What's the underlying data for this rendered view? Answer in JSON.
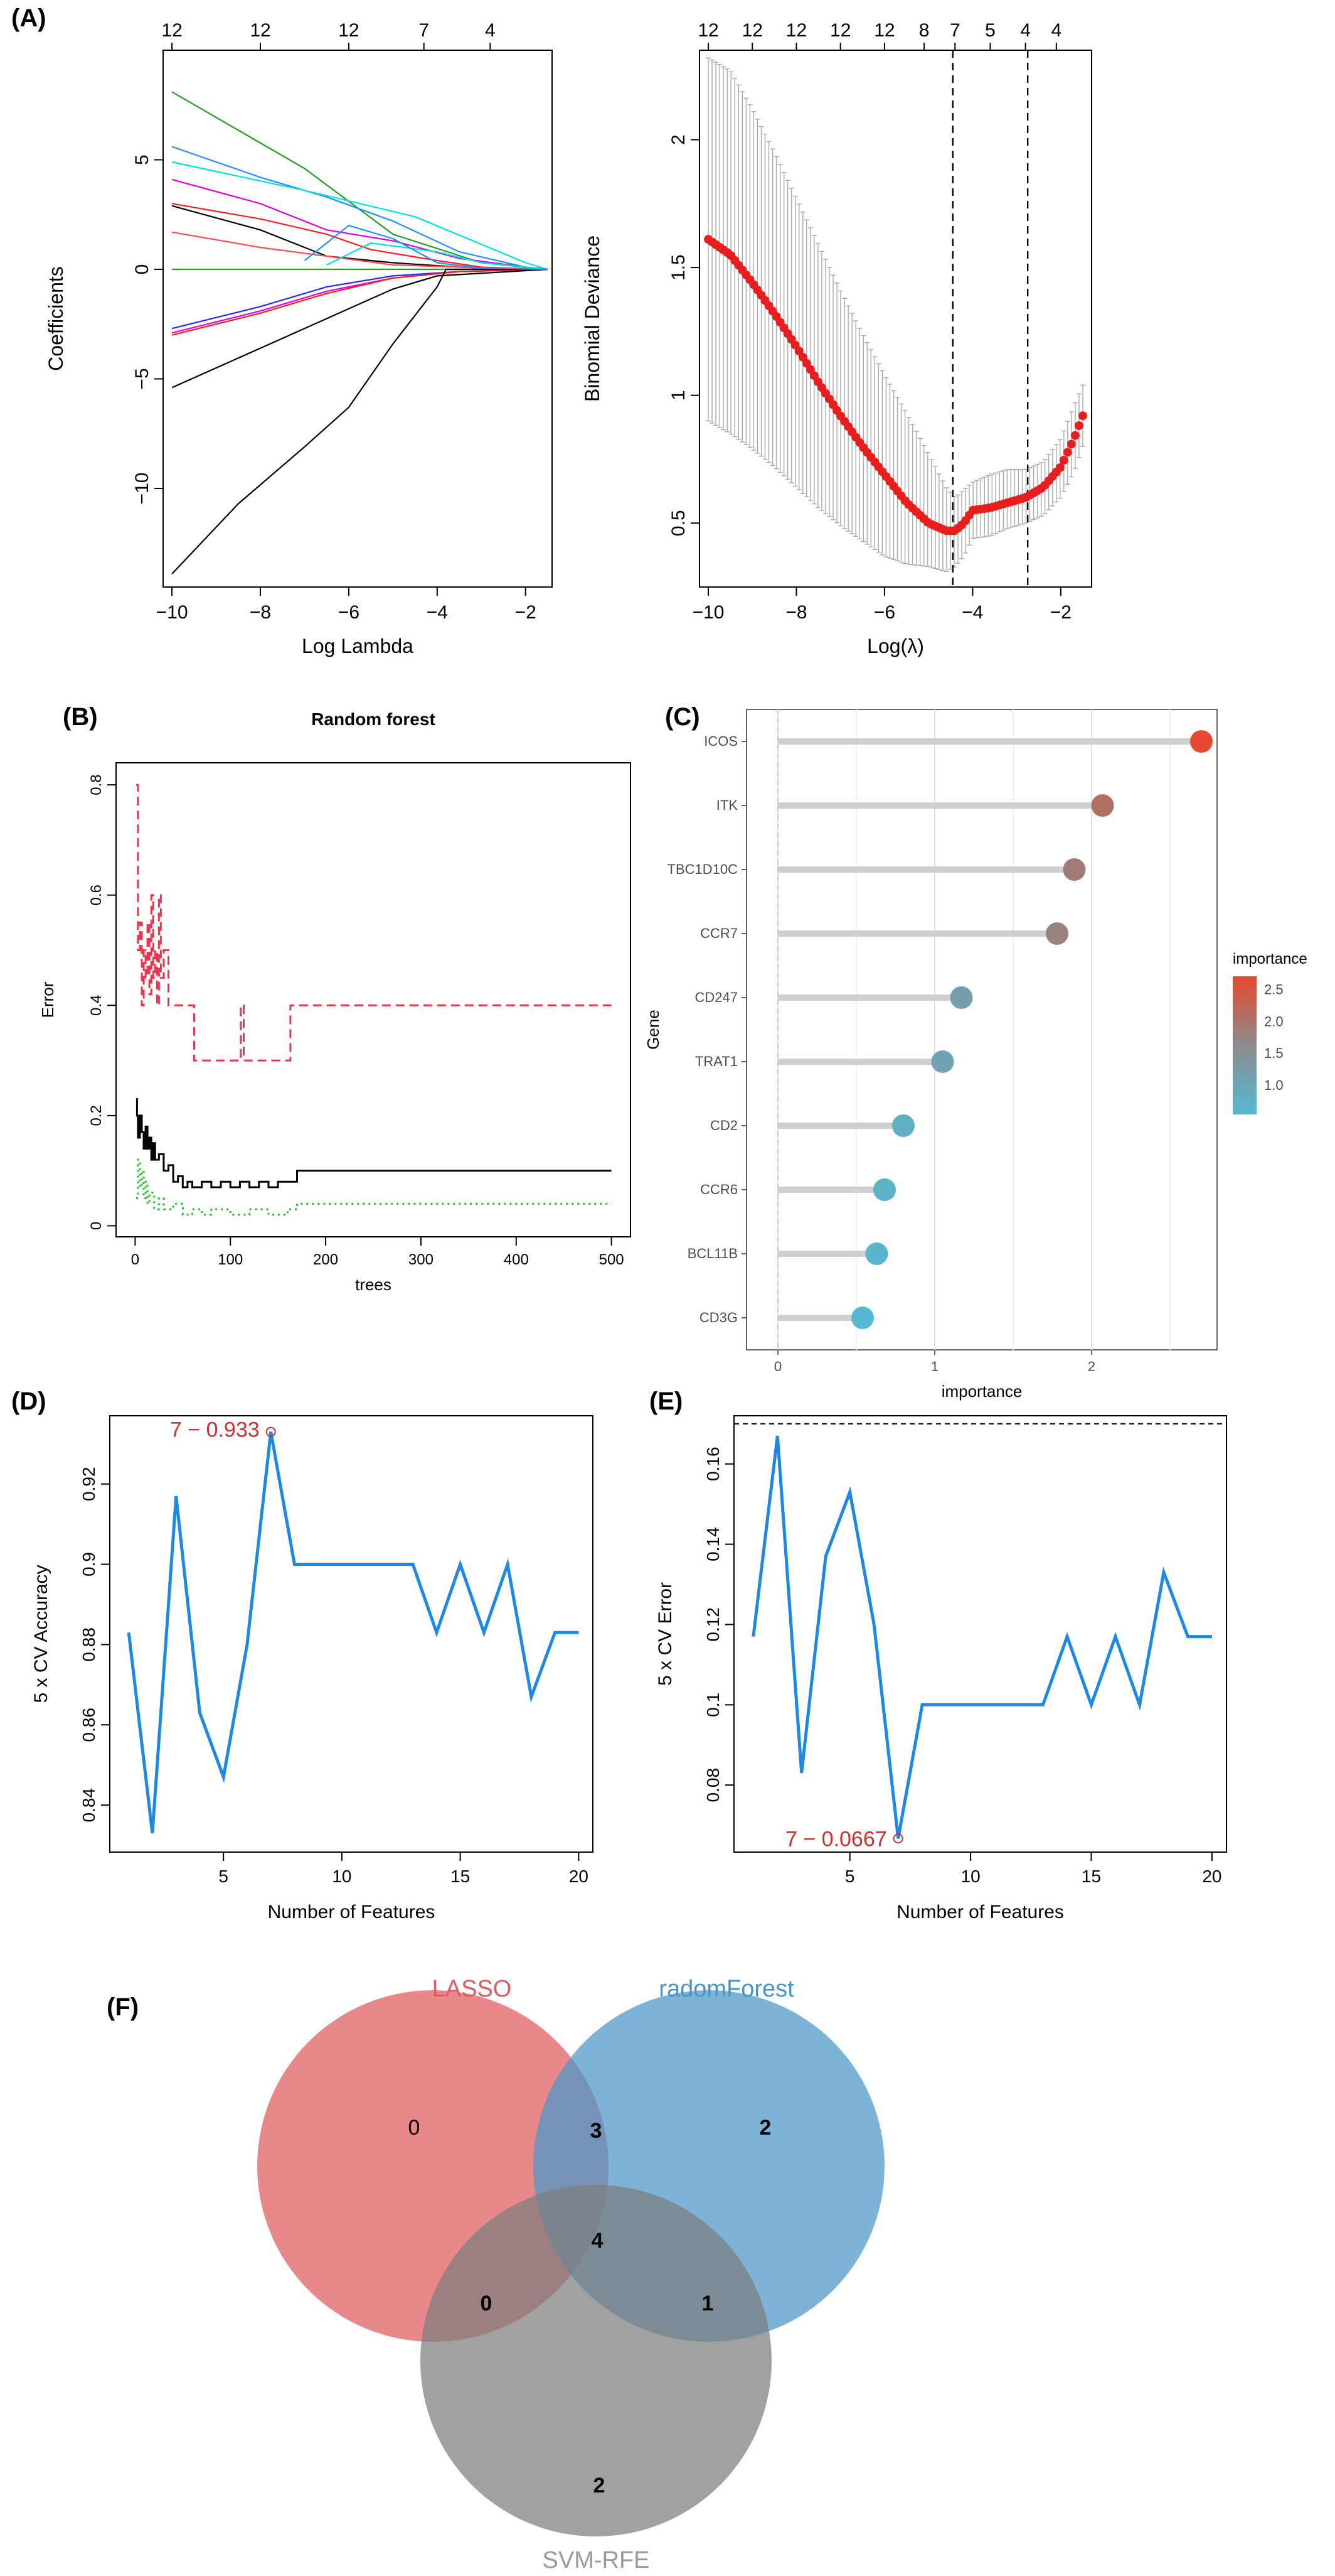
{
  "panels": {
    "A": "(A)",
    "B": "(B)",
    "C": "(C)",
    "D": "(D)",
    "E": "(E)",
    "F": "(F)"
  },
  "chart_data": [
    {
      "id": "A1",
      "type": "line",
      "xlabel": "Log Lambda",
      "ylabel": "Coefficients",
      "xlim": [
        -10.2,
        -1.4
      ],
      "ylim": [
        -14.5,
        10.0
      ],
      "xticks": [
        -10,
        -8,
        -6,
        -4,
        -2
      ],
      "yticks": [
        -10,
        -5,
        0,
        5
      ],
      "top_axis_ticks": [
        -10,
        -8,
        -6,
        -4.3,
        -2.8
      ],
      "top_axis_labels": [
        "12",
        "12",
        "12",
        "7",
        "4"
      ],
      "series": [
        {
          "color": "#1ea01e",
          "x": [
            -10,
            -7,
            -5,
            -3,
            -1.5
          ],
          "y": [
            8.1,
            4.6,
            1.6,
            0.3,
            0
          ]
        },
        {
          "color": "#1e90ff",
          "x": [
            -10,
            -8,
            -6.5,
            -5,
            -3.5,
            -2,
            -1.5
          ],
          "y": [
            5.6,
            4.2,
            3.3,
            2.2,
            0.8,
            0.1,
            0
          ]
        },
        {
          "color": "#00e0e0",
          "x": [
            -10,
            -7,
            -4.5,
            -2,
            -1.5
          ],
          "y": [
            4.9,
            3.6,
            2.4,
            0.3,
            0
          ]
        },
        {
          "color": "#e000e0",
          "x": [
            -10,
            -8,
            -6.5,
            -5,
            -3.5,
            -2,
            -1.5
          ],
          "y": [
            4.1,
            3.0,
            1.8,
            1.3,
            0.5,
            0.1,
            0
          ]
        },
        {
          "color": "#000000",
          "x": [
            -10,
            -8,
            -6.5,
            -5,
            -3.5,
            -2,
            -1.5
          ],
          "y": [
            2.9,
            1.8,
            0.6,
            0.3,
            0.1,
            0,
            0
          ]
        },
        {
          "color": "#ff1e1e",
          "x": [
            -10,
            -8,
            -6.5,
            -5.5,
            -4,
            -3,
            -1.5
          ],
          "y": [
            3.0,
            2.3,
            1.6,
            0.9,
            0.4,
            0.1,
            0
          ]
        },
        {
          "color": "#ff4d4d",
          "x": [
            -10,
            -8,
            -6.5,
            -5,
            -3.5,
            -1.5
          ],
          "y": [
            1.7,
            1.0,
            0.6,
            0.2,
            0.1,
            0
          ]
        },
        {
          "color": "#1ea01e",
          "x": [
            -10,
            -7,
            -4,
            -1.5
          ],
          "y": [
            0,
            0,
            0,
            0
          ]
        },
        {
          "color": "#2828ff",
          "x": [
            -10,
            -8,
            -6.5,
            -5,
            -3.5,
            -1.5
          ],
          "y": [
            -2.7,
            -1.7,
            -0.8,
            -0.3,
            -0.1,
            0
          ]
        },
        {
          "color": "#e000e0",
          "x": [
            -10,
            -8,
            -6.5,
            -5,
            -3.5,
            -1.5
          ],
          "y": [
            -2.9,
            -1.9,
            -1.0,
            -0.4,
            -0.1,
            0
          ]
        },
        {
          "color": "#ff1e1e",
          "x": [
            -10,
            -8,
            -6.5,
            -5,
            -3.5,
            -1.5
          ],
          "y": [
            -3.0,
            -2.0,
            -1.1,
            -0.4,
            -0.1,
            0
          ]
        },
        {
          "color": "#000000",
          "x": [
            -10,
            -8,
            -6,
            -5,
            -4,
            -1.5
          ],
          "y": [
            -5.4,
            -3.6,
            -1.8,
            -0.9,
            -0.3,
            0
          ]
        },
        {
          "color": "#000000",
          "x": [
            -10,
            -8.5,
            -7,
            -6,
            -5,
            -4,
            -3.8,
            -1.5
          ],
          "y": [
            -13.9,
            -10.7,
            -8.1,
            -6.3,
            -3.4,
            -0.8,
            0,
            0
          ]
        },
        {
          "color": "#00e0e0",
          "x": [
            -6.5,
            -5.5,
            -4,
            -3,
            -1.5
          ],
          "y": [
            0.2,
            1.2,
            0.8,
            0.3,
            0
          ]
        },
        {
          "color": "#1e90ff",
          "x": [
            -7,
            -6,
            -5,
            -4,
            -3,
            -1.5
          ],
          "y": [
            0.4,
            2.0,
            1.4,
            0.3,
            0.05,
            0
          ]
        }
      ]
    },
    {
      "id": "A2",
      "type": "scatter",
      "xlabel": "Log(λ)",
      "ylabel": "Binomial Deviance",
      "xlim": [
        -10.2,
        -1.3
      ],
      "ylim": [
        0.25,
        2.35
      ],
      "xticks": [
        -10,
        -8,
        -6,
        -4,
        -2
      ],
      "yticks": [
        0.5,
        1.0,
        1.5,
        2.0
      ],
      "top_axis_ticks": [
        -10,
        -9,
        -8,
        -7,
        -6,
        -5.1,
        -4.4,
        -3.6,
        -2.8,
        -2.1
      ],
      "top_axis_labels": [
        "12",
        "12",
        "12",
        "12",
        "12",
        "8",
        "7",
        "5",
        "4",
        "4"
      ],
      "vlines": [
        -4.45,
        -2.75
      ],
      "curve": {
        "x": [
          -10,
          -9.5,
          -9,
          -8.5,
          -8,
          -7.5,
          -7,
          -6.5,
          -6,
          -5.5,
          -5,
          -4.6,
          -4.4,
          -4.2,
          -4.0,
          -3.6,
          -3.2,
          -2.8,
          -2.4,
          -2.0,
          -1.7,
          -1.5
        ],
        "y": [
          1.61,
          1.55,
          1.44,
          1.32,
          1.19,
          1.05,
          0.92,
          0.8,
          0.69,
          0.58,
          0.5,
          0.47,
          0.47,
          0.5,
          0.55,
          0.56,
          0.58,
          0.6,
          0.64,
          0.72,
          0.83,
          0.92
        ]
      },
      "upper": [
        2.32,
        2.27,
        2.12,
        1.95,
        1.77,
        1.59,
        1.41,
        1.24,
        1.08,
        0.93,
        0.77,
        0.64,
        0.6,
        0.63,
        0.66,
        0.69,
        0.71,
        0.71,
        0.74,
        0.83,
        0.96,
        1.04
      ],
      "lower": [
        0.9,
        0.85,
        0.79,
        0.72,
        0.64,
        0.56,
        0.49,
        0.43,
        0.37,
        0.34,
        0.33,
        0.31,
        0.33,
        0.37,
        0.44,
        0.45,
        0.48,
        0.5,
        0.53,
        0.6,
        0.7,
        0.8
      ]
    },
    {
      "id": "B",
      "type": "line",
      "title": "Random forest",
      "xlabel": "trees",
      "ylabel": "Error",
      "xlim": [
        -20,
        520
      ],
      "ylim": [
        -0.02,
        0.84
      ],
      "xticks": [
        0,
        100,
        200,
        300,
        400,
        500
      ],
      "yticks": [
        0.0,
        0.2,
        0.4,
        0.6,
        0.8
      ],
      "series": [
        {
          "color": "#e8344e",
          "dash": "14,8",
          "x": [
            1,
            3,
            5,
            7,
            9,
            11,
            13,
            15,
            17,
            19,
            21,
            23,
            25,
            27,
            30,
            35,
            40,
            50,
            60,
            62,
            80,
            100,
            110,
            111,
            113,
            114,
            120,
            140,
            160,
            163,
            200,
            300,
            400,
            500
          ],
          "y": [
            0.8,
            0.5,
            0.55,
            0.4,
            0.5,
            0.45,
            0.55,
            0.42,
            0.6,
            0.45,
            0.5,
            0.4,
            0.6,
            0.45,
            0.5,
            0.4,
            0.4,
            0.4,
            0.4,
            0.3,
            0.3,
            0.3,
            0.3,
            0.4,
            0.4,
            0.3,
            0.3,
            0.3,
            0.3,
            0.4,
            0.4,
            0.4,
            0.4,
            0.4
          ]
        },
        {
          "color": "#000000",
          "dash": "",
          "x": [
            1,
            2,
            3,
            5,
            7,
            9,
            11,
            13,
            15,
            17,
            19,
            21,
            25,
            30,
            35,
            40,
            45,
            50,
            55,
            60,
            65,
            70,
            80,
            90,
            100,
            110,
            120,
            130,
            140,
            150,
            160,
            170,
            200,
            300,
            400,
            500
          ],
          "y": [
            0.23,
            0.2,
            0.16,
            0.2,
            0.17,
            0.14,
            0.18,
            0.14,
            0.16,
            0.12,
            0.15,
            0.12,
            0.13,
            0.1,
            0.11,
            0.08,
            0.09,
            0.07,
            0.08,
            0.07,
            0.07,
            0.08,
            0.07,
            0.08,
            0.07,
            0.08,
            0.07,
            0.08,
            0.07,
            0.08,
            0.08,
            0.1,
            0.1,
            0.1,
            0.1,
            0.1
          ]
        },
        {
          "color": "#22bb22",
          "dash": "3,6",
          "x": [
            1,
            3,
            5,
            7,
            9,
            11,
            13,
            15,
            20,
            25,
            30,
            40,
            50,
            60,
            70,
            80,
            100,
            120,
            140,
            160,
            170,
            200,
            300,
            400,
            500
          ],
          "y": [
            0.05,
            0.12,
            0.07,
            0.1,
            0.05,
            0.08,
            0.04,
            0.06,
            0.03,
            0.05,
            0.03,
            0.04,
            0.02,
            0.03,
            0.02,
            0.03,
            0.02,
            0.03,
            0.02,
            0.03,
            0.04,
            0.04,
            0.04,
            0.04,
            0.04
          ]
        }
      ]
    },
    {
      "id": "C",
      "type": "scatter",
      "xlabel": "importance",
      "ylabel": "Gene",
      "xlim": [
        -0.2,
        2.8
      ],
      "xticks": [
        0,
        1,
        2
      ],
      "genes": [
        "ICOS",
        "ITK",
        "TBC1D10C",
        "CCR7",
        "CD247",
        "TRAT1",
        "CD2",
        "CCR6",
        "BCL11B",
        "CD3G"
      ],
      "values": [
        2.7,
        2.07,
        1.89,
        1.78,
        1.17,
        1.05,
        0.8,
        0.68,
        0.63,
        0.54
      ],
      "legend": {
        "title": "importance",
        "ticks": [
          "2.5",
          "2.0",
          "1.5",
          "1.0"
        ],
        "tick_values": [
          2.5,
          2.0,
          1.5,
          1.0
        ]
      },
      "color_range": [
        0.54,
        2.7
      ]
    },
    {
      "id": "D",
      "type": "line",
      "xlabel": "Number of Features",
      "ylabel": "5 x CV Accuracy",
      "xlim": [
        0.2,
        20.6
      ],
      "ylim": [
        0.8283,
        0.937
      ],
      "xticks": [
        5,
        10,
        15,
        20
      ],
      "yticks": [
        0.84,
        0.86,
        0.88,
        0.9,
        0.92
      ],
      "x": [
        1,
        2,
        3,
        4,
        5,
        6,
        7,
        8,
        9,
        10,
        11,
        12,
        13,
        14,
        15,
        16,
        17,
        18,
        19,
        20
      ],
      "y": [
        0.883,
        0.833,
        0.917,
        0.863,
        0.847,
        0.88,
        0.933,
        0.9,
        0.9,
        0.9,
        0.9,
        0.9,
        0.9,
        0.883,
        0.9,
        0.883,
        0.9,
        0.867,
        0.883,
        0.883
      ],
      "annotation": "7 − 0.933"
    },
    {
      "id": "E",
      "type": "line",
      "xlabel": "Number of Features",
      "ylabel": "5 x CV Error",
      "xlim": [
        0.2,
        20.6
      ],
      "ylim": [
        0.0633,
        0.172
      ],
      "xticks": [
        5,
        10,
        15,
        20
      ],
      "yticks": [
        0.08,
        0.1,
        0.12,
        0.14,
        0.16
      ],
      "x": [
        1,
        2,
        3,
        4,
        5,
        6,
        7,
        8,
        9,
        10,
        11,
        12,
        13,
        14,
        15,
        16,
        17,
        18,
        19,
        20
      ],
      "y": [
        0.117,
        0.167,
        0.083,
        0.137,
        0.153,
        0.12,
        0.0667,
        0.1,
        0.1,
        0.1,
        0.1,
        0.1,
        0.1,
        0.117,
        0.1,
        0.117,
        0.1,
        0.133,
        0.117,
        0.117
      ],
      "hline": 0.17,
      "annotation": "7 − 0.0667"
    }
  ],
  "venn": {
    "sets": [
      {
        "name": "LASSO",
        "color": "#e05a5e"
      },
      {
        "name": "radomForest",
        "color": "#4a95c8"
      },
      {
        "name": "SVM-RFE",
        "color": "#7d7d7d"
      }
    ],
    "regions": {
      "lasso_only": "0",
      "rf_only": "2",
      "svm_only": "2",
      "lasso_rf": "3",
      "lasso_svm": "0",
      "rf_svm": "1",
      "all": "4"
    }
  }
}
